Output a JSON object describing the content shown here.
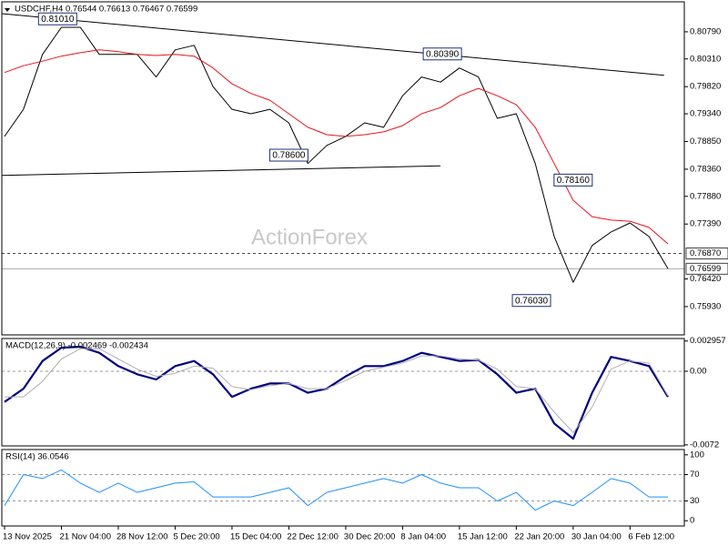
{
  "chart_data": [
    {
      "type": "line",
      "title": "USDCHF,H4  0.76544 0.76613 0.76467 0.76599",
      "watermark": "ActionForex",
      "categories": [
        "13 Nov 2025",
        null,
        null,
        "21 Nov 04:00",
        null,
        null,
        "28 Nov 12:00",
        null,
        null,
        "5 Dec 20:00",
        null,
        null,
        "15 Dec 04:00",
        null,
        null,
        "22 Dec 12:00",
        null,
        null,
        "30 Dec 20:00",
        null,
        null,
        "8 Jan 04:00",
        null,
        null,
        "15 Jan 12:00",
        null,
        null,
        "22 Jan 20:00",
        null,
        null,
        "30 Jan 04:00",
        null,
        null,
        "6 Feb 12:00",
        null,
        null
      ],
      "series": [
        {
          "color": "#000000",
          "values": [
            0.7894,
            0.7942,
            0.8039,
            0.8087,
            0.8087,
            0.8039,
            0.8039,
            0.8039,
            0.7999,
            0.8047,
            0.8055,
            0.7982,
            0.7942,
            0.7934,
            0.7942,
            0.7918,
            0.7846,
            0.7878,
            0.7894,
            0.7918,
            0.791,
            0.7966,
            0.7999,
            0.799,
            0.8015,
            0.7999,
            0.7926,
            0.7934,
            0.7846,
            0.7717,
            0.7636,
            0.7701,
            0.7725,
            0.7741,
            0.7717,
            0.766
          ]
        },
        {
          "color": "#e8141c",
          "values": [
            0.8007,
            0.8019,
            0.8027,
            0.8036,
            0.8042,
            0.8047,
            0.8044,
            0.8039,
            0.8037,
            0.8039,
            0.8036,
            0.8015,
            0.7987,
            0.797,
            0.7958,
            0.7934,
            0.791,
            0.7897,
            0.7894,
            0.7897,
            0.7902,
            0.7913,
            0.7934,
            0.7945,
            0.7966,
            0.7979,
            0.7966,
            0.795,
            0.791,
            0.7846,
            0.7781,
            0.7752,
            0.7746,
            0.7744,
            0.7733,
            0.7704
          ]
        }
      ],
      "ylim": [
        0.7543,
        0.8132
      ],
      "yticks": [
        {
          "value": 0.8079,
          "label": "0.80790"
        },
        {
          "value": 0.8031,
          "label": "0.80310"
        },
        {
          "value": 0.7982,
          "label": "0.79820"
        },
        {
          "value": 0.7934,
          "label": "0.79340"
        },
        {
          "value": 0.7885,
          "label": "0.78850"
        },
        {
          "value": 0.7836,
          "label": "0.78360"
        },
        {
          "value": 0.7788,
          "label": "0.77880"
        },
        {
          "value": 0.7739,
          "label": "0.77390"
        },
        {
          "value": 0.7642,
          "label": "0.76420"
        },
        {
          "value": 0.7593,
          "label": "0.75930"
        }
      ],
      "hlines": [
        {
          "value": 0.7687,
          "label": "0.76870",
          "style": "dashed"
        },
        {
          "value": 0.76599,
          "label": "0.76599",
          "style": "solid"
        }
      ],
      "trendlines": [
        {
          "x": [
            -0.14,
            34.8
          ],
          "y": [
            0.8111,
            0.8002
          ]
        },
        {
          "x": [
            -0.14,
            23.0
          ],
          "y": [
            0.7825,
            0.7842
          ]
        }
      ],
      "annotations": [
        {
          "text": "0.81010",
          "x": 2.8,
          "y": 0.8101
        },
        {
          "text": "0.80390",
          "x": 23.1,
          "y": 0.8039
        },
        {
          "text": "0.78600",
          "x": 15,
          "y": 0.786
        },
        {
          "text": "0.78160",
          "x": 30,
          "y": 0.7816
        },
        {
          "text": "0.76030",
          "x": 27.8,
          "y": 0.7603
        }
      ]
    },
    {
      "type": "line",
      "title": "MACD(12,26,9) -0.002469 -0.002434",
      "series": [
        {
          "color": "#000080",
          "width": 2.2,
          "values": [
            -0.003,
            -0.0017,
            0.001,
            0.0023,
            0.0024,
            0.0018,
            0.0005,
            -0.0003,
            -0.0008,
            0.0005,
            0.001,
            -0.0003,
            -0.0025,
            -0.0017,
            -0.0012,
            -0.0012,
            -0.0021,
            -0.0017,
            -0.0005,
            0.0005,
            0.0005,
            0.001,
            0.0018,
            0.0014,
            0.001,
            0.0011,
            -0.0003,
            -0.0021,
            -0.0017,
            -0.0051,
            -0.0066,
            -0.0021,
            0.0014,
            0.001,
            0.0005,
            -0.0025
          ]
        },
        {
          "color": "#b0b0b0",
          "width": 1,
          "values": [
            -0.0025,
            -0.0025,
            -0.001,
            0.0012,
            0.0022,
            0.0022,
            0.0012,
            0.0002,
            -0.0005,
            -0.0002,
            0.0005,
            0.0003,
            -0.0015,
            -0.0018,
            -0.0014,
            -0.0012,
            -0.0017,
            -0.0017,
            -0.0009,
            0.0,
            0.0004,
            0.0008,
            0.0015,
            0.0015,
            0.0012,
            0.0011,
            0.0002,
            -0.0015,
            -0.0017,
            -0.004,
            -0.006,
            -0.0035,
            0.0002,
            0.001,
            0.0008,
            -0.0024
          ]
        }
      ],
      "ylim": [
        -0.0073,
        0.0032
      ],
      "yticks": [
        0.002957,
        {
          "value": 0,
          "label": "0.00"
        },
        -0.0072
      ],
      "levels": [
        0
      ]
    },
    {
      "type": "line",
      "title": "RSI(14) 36.0546",
      "series": [
        {
          "color": "#1e90ff",
          "width": 1,
          "values": [
            23,
            70,
            64,
            77,
            57,
            43,
            57,
            43,
            50,
            57,
            59,
            36,
            36,
            36,
            43,
            50,
            23,
            43,
            50,
            57,
            64,
            57,
            70,
            57,
            50,
            50,
            30,
            43,
            16,
            30,
            23,
            43,
            64,
            57,
            36,
            36.0546
          ]
        }
      ],
      "ylim": [
        -8,
        108
      ],
      "yticks": [
        0,
        30,
        70,
        100
      ],
      "levels": [
        30,
        70
      ]
    }
  ]
}
